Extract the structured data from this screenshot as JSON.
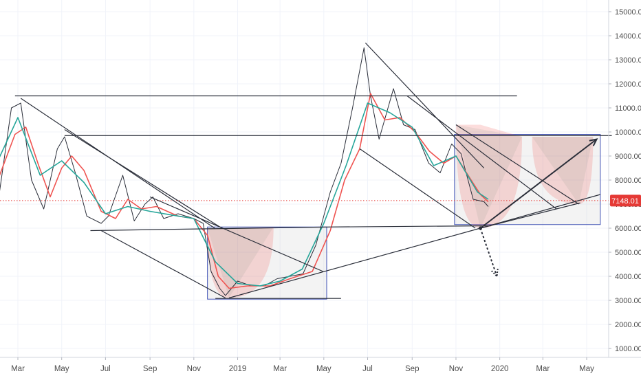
{
  "chart_data": {
    "type": "line",
    "title": "",
    "xlabel": "",
    "ylabel": "",
    "ylim": [
      500,
      15500
    ],
    "y_ticks": [
      1000,
      2000,
      3000,
      4000,
      5000,
      6000,
      7000,
      8000,
      9000,
      10000,
      11000,
      12000,
      13000,
      14000,
      15000
    ],
    "y_tick_labels": [
      "1000.00",
      "2000.00",
      "3000.00",
      "4000.00",
      "5000.00",
      "6000.00",
      "7000.00",
      "8000.00",
      "9000.00",
      "10000.00",
      "11000.00",
      "12000.00",
      "13000.00",
      "14000.00",
      "15000.00"
    ],
    "x_ticks": [
      {
        "label": "Mar",
        "date": "2018-03-01"
      },
      {
        "label": "May",
        "date": "2018-05-01"
      },
      {
        "label": "Jul",
        "date": "2018-07-01"
      },
      {
        "label": "Sep",
        "date": "2018-09-01"
      },
      {
        "label": "Nov",
        "date": "2018-11-01"
      },
      {
        "label": "2019",
        "date": "2019-01-01"
      },
      {
        "label": "Mar",
        "date": "2019-03-01"
      },
      {
        "label": "May",
        "date": "2019-05-01"
      },
      {
        "label": "Jul",
        "date": "2019-07-01"
      },
      {
        "label": "Sep",
        "date": "2019-09-01"
      },
      {
        "label": "Nov",
        "date": "2019-11-01"
      },
      {
        "label": "2020",
        "date": "2020-01-01"
      },
      {
        "label": "Mar",
        "date": "2020-03-01"
      },
      {
        "label": "May",
        "date": "2020-05-01"
      }
    ],
    "grid": true,
    "last_price": {
      "value": 7148.01,
      "label": "7148.01",
      "color": "#e53935"
    },
    "series": [
      {
        "color": "#2a2e39",
        "x": [
          "2018-02-01",
          "2018-02-20",
          "2018-03-05",
          "2018-03-20",
          "2018-04-06",
          "2018-04-25",
          "2018-05-05",
          "2018-05-20",
          "2018-06-05",
          "2018-06-25",
          "2018-07-05",
          "2018-07-25",
          "2018-08-10",
          "2018-08-25",
          "2018-09-05",
          "2018-09-20",
          "2018-10-10",
          "2018-11-01",
          "2018-11-14",
          "2018-11-25",
          "2018-12-07",
          "2018-12-15",
          "2019-01-01",
          "2019-01-20",
          "2019-02-07",
          "2019-02-25",
          "2019-03-15",
          "2019-04-02",
          "2019-04-20",
          "2019-05-10",
          "2019-05-25",
          "2019-06-10",
          "2019-06-26",
          "2019-07-05",
          "2019-07-17",
          "2019-08-06",
          "2019-08-20",
          "2019-09-05",
          "2019-09-24",
          "2019-10-10",
          "2019-10-26",
          "2019-11-08",
          "2019-11-25",
          "2019-12-10",
          "2019-12-16"
        ],
        "values": [
          7000,
          11000,
          11200,
          8000,
          6800,
          9300,
          9800,
          8300,
          6500,
          6200,
          6500,
          8200,
          6300,
          7000,
          7300,
          6400,
          6600,
          6400,
          6200,
          4200,
          3500,
          3200,
          3800,
          3600,
          3600,
          3900,
          4000,
          4100,
          5300,
          7500,
          8700,
          11000,
          13500,
          11500,
          9700,
          11800,
          10300,
          10100,
          8700,
          8300,
          9500,
          9100,
          7200,
          7100,
          6900
        ]
      },
      {
        "color": "#ef5350",
        "x": [
          "2018-02-01",
          "2018-02-25",
          "2018-03-12",
          "2018-03-30",
          "2018-04-15",
          "2018-05-01",
          "2018-05-15",
          "2018-06-01",
          "2018-06-25",
          "2018-07-15",
          "2018-08-01",
          "2018-08-20",
          "2018-09-10",
          "2018-10-10",
          "2018-11-01",
          "2018-11-20",
          "2018-12-05",
          "2018-12-20",
          "2019-01-15",
          "2019-02-15",
          "2019-03-15",
          "2019-04-15",
          "2019-05-10",
          "2019-05-30",
          "2019-06-20",
          "2019-07-05",
          "2019-07-25",
          "2019-08-15",
          "2019-09-05",
          "2019-09-25",
          "2019-10-15",
          "2019-11-01",
          "2019-11-20",
          "2019-12-05",
          "2019-12-16"
        ],
        "values": [
          8000,
          9900,
          10200,
          8600,
          7300,
          8500,
          9000,
          8400,
          6700,
          6400,
          7200,
          6800,
          6900,
          6500,
          6400,
          5700,
          4000,
          3500,
          3600,
          3600,
          3900,
          4200,
          5900,
          8000,
          9300,
          11600,
          10500,
          10600,
          10000,
          9200,
          8700,
          9000,
          8100,
          7400,
          7100
        ]
      },
      {
        "color": "#26a69a",
        "x": [
          "2018-02-01",
          "2018-03-01",
          "2018-04-01",
          "2018-05-01",
          "2018-06-01",
          "2018-07-01",
          "2018-08-01",
          "2018-09-01",
          "2018-10-01",
          "2018-11-01",
          "2018-12-01",
          "2019-01-01",
          "2019-02-01",
          "2019-03-01",
          "2019-04-01",
          "2019-05-01",
          "2019-06-01",
          "2019-07-01",
          "2019-08-01",
          "2019-09-01",
          "2019-10-01",
          "2019-11-01",
          "2019-12-01",
          "2019-12-16"
        ],
        "values": [
          8800,
          10600,
          8200,
          8800,
          7900,
          6600,
          6900,
          6700,
          6550,
          6400,
          4600,
          3700,
          3600,
          3800,
          4300,
          6200,
          8600,
          11200,
          10800,
          10200,
          8600,
          9000,
          7500,
          7200
        ]
      }
    ],
    "lines": [
      {
        "from": [
          "2018-02-25",
          11500
        ],
        "to": [
          "2020-01-25",
          11500
        ],
        "color": "#2a2e39"
      },
      {
        "from": [
          "2018-05-05",
          9850
        ],
        "to": [
          "2020-06-05",
          9850
        ],
        "color": "#2a2e39"
      },
      {
        "from": [
          "2018-06-10",
          5900
        ],
        "to": [
          "2019-05-10",
          6050
        ],
        "color": "#2a2e39"
      },
      {
        "from": [
          "2019-05-10",
          6050
        ],
        "to": [
          "2019-12-20",
          6100
        ],
        "color": "#2a2e39"
      },
      {
        "from": [
          "2018-12-01",
          3080
        ],
        "to": [
          "2019-05-25",
          3080
        ],
        "color": "#2a2e39"
      },
      {
        "from": [
          "2018-03-05",
          11400
        ],
        "to": [
          "2018-11-30",
          6000
        ],
        "color": "#2a2e39"
      },
      {
        "from": [
          "2018-05-05",
          10100
        ],
        "to": [
          "2018-12-10",
          6000
        ],
        "color": "#2a2e39"
      },
      {
        "from": [
          "2018-09-01",
          7300
        ],
        "to": [
          "2019-04-30",
          4200
        ],
        "color": "#2a2e39"
      },
      {
        "from": [
          "2018-06-25",
          5900
        ],
        "to": [
          "2018-12-15",
          3100
        ],
        "color": "#2a2e39"
      },
      {
        "from": [
          "2018-12-20",
          3100
        ],
        "to": [
          "2019-12-05",
          6000
        ],
        "color": "#2a2e39"
      },
      {
        "from": [
          "2019-12-05",
          6000
        ],
        "to": [
          "2020-05-20",
          7400
        ],
        "color": "#2a2e39"
      },
      {
        "from": [
          "2019-06-28",
          13700
        ],
        "to": [
          "2019-12-10",
          8500
        ],
        "color": "#2a2e39"
      },
      {
        "from": [
          "2019-06-20",
          9300
        ],
        "to": [
          "2019-11-28",
          6000
        ],
        "color": "#2a2e39"
      },
      {
        "from": [
          "2019-11-01",
          10300
        ],
        "to": [
          "2020-04-20",
          7000
        ],
        "color": "#2a2e39"
      },
      {
        "from": [
          "2019-08-25",
          11500
        ],
        "to": [
          "2020-03-20",
          6800
        ],
        "color": "#2a2e39"
      },
      {
        "from": [
          "2019-12-05",
          6000
        ],
        "to": [
          "2020-04-22",
          7050
        ],
        "color": "#2a2e39"
      }
    ],
    "arrows": [
      {
        "from": [
          "2019-12-05",
          6000
        ],
        "to": [
          "2020-05-15",
          9700
        ],
        "color": "#2a2e39",
        "dashed": false
      },
      {
        "from": [
          "2019-12-05",
          6000
        ],
        "to": [
          "2019-12-28",
          4000
        ],
        "color": "#2a2e39",
        "dashed": true
      }
    ],
    "boxes": [
      {
        "x1": "2018-11-20",
        "x2": "2019-05-05",
        "y1": 3050,
        "y2": 6050
      },
      {
        "x1": "2019-10-30",
        "x2": "2020-05-20",
        "y1": 6150,
        "y2": 9900
      }
    ],
    "curves": [
      {
        "label_color": "#e57373",
        "start": [
          "2018-11-20",
          6000
        ],
        "peak": [
          "2018-12-20",
          3100
        ],
        "end": [
          "2019-02-20",
          6050
        ]
      },
      {
        "label_color": "#e57373",
        "start": [
          "2019-11-01",
          10300
        ],
        "peak": [
          "2019-12-05",
          6000
        ],
        "end": [
          "2020-02-01",
          9800
        ]
      },
      {
        "label_color": "#e57373",
        "start": [
          "2020-02-15",
          9800
        ],
        "peak": [
          "2020-04-20",
          7000
        ],
        "end": [
          "2020-05-10",
          9800
        ]
      }
    ]
  }
}
